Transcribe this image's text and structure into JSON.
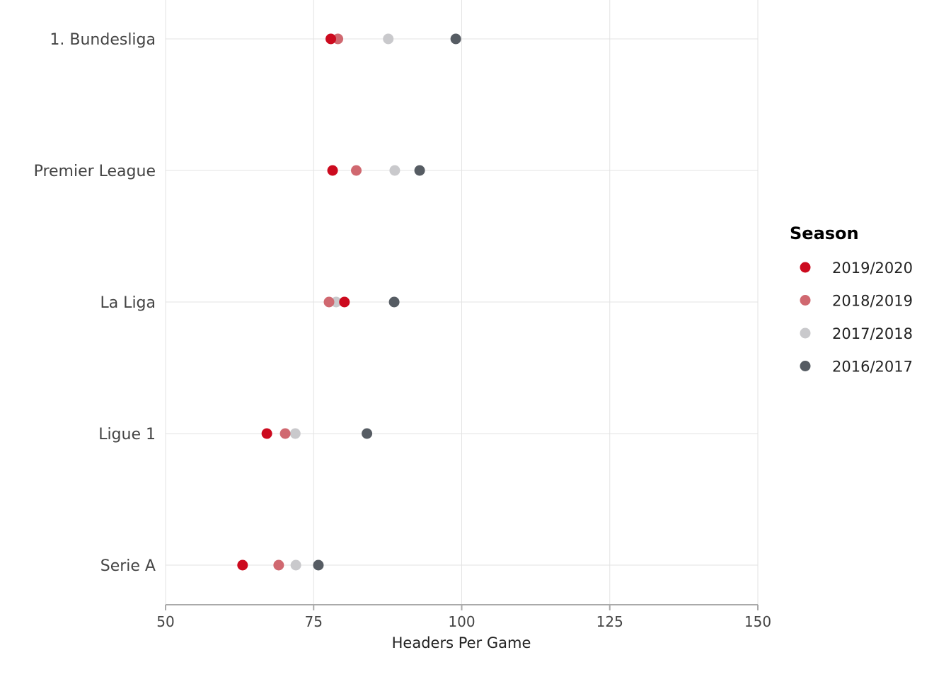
{
  "chart_data": {
    "type": "scatter",
    "xlabel": "Headers Per Game",
    "xlim": [
      50,
      150
    ],
    "x_ticks": [
      "50",
      "75",
      "100",
      "125",
      "150"
    ],
    "categories": [
      "1. Bundesliga",
      "Premier League",
      "La Liga",
      "Ligue 1",
      "Serie A"
    ],
    "legend": {
      "title": "Season",
      "position": "right"
    },
    "grid": true,
    "series": [
      {
        "name": "2019/2020",
        "color": "#cc0a1e",
        "values": [
          77.9,
          78.2,
          80.2,
          67.1,
          63.0
        ]
      },
      {
        "name": "2018/2019",
        "color": "#d06870",
        "values": [
          79.1,
          82.2,
          77.6,
          70.2,
          69.1
        ]
      },
      {
        "name": "2017/2018",
        "color": "#c9c9cc",
        "values": [
          87.6,
          88.7,
          78.8,
          71.9,
          72.0
        ]
      },
      {
        "name": "2016/2017",
        "color": "#565c63",
        "values": [
          99.0,
          92.9,
          88.6,
          84.0,
          75.8
        ]
      }
    ]
  }
}
